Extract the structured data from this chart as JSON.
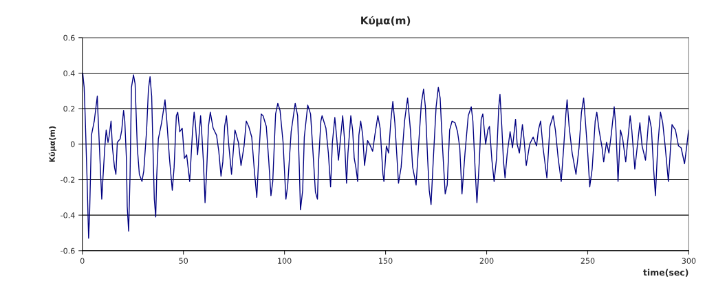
{
  "chart_data": {
    "type": "line",
    "title": "Κύμα(m)",
    "xlabel": "time(sec)",
    "ylabel": "Κύμα(m)",
    "x": [
      0.2,
      0.9,
      1.4,
      2.3,
      3.1,
      3.6,
      4.5,
      5.9,
      7.4,
      7.7,
      8.7,
      9.6,
      10.2,
      11.1,
      11.8,
      12.7,
      13.2,
      14.2,
      14.9,
      15.9,
      16.6,
      17.3,
      18.7,
      19.5,
      20.4,
      21.0,
      21.8,
      22.2,
      22.9,
      23.6,
      24.3,
      25.3,
      26.1,
      27.2,
      28.2,
      29.5,
      30.4,
      31.8,
      32.7,
      33.5,
      34.3,
      35.0,
      35.6,
      36.3,
      36.8,
      37.6,
      39.2,
      40.9,
      41.8,
      43.1,
      44.5,
      45.4,
      46.5,
      47.2,
      48.2,
      49.4,
      50.5,
      51.6,
      53.1,
      54.5,
      55.3,
      55.9,
      57.0,
      58.5,
      59.2,
      59.9,
      60.7,
      61.5,
      62.4,
      63.3,
      64.7,
      66.4,
      67.5,
      68.6,
      69.5,
      70.4,
      71.3,
      72.4,
      73.8,
      74.6,
      75.5,
      77.2,
      78.5,
      80.0,
      81.1,
      82.3,
      83.8,
      85.1,
      86.3,
      87.2,
      88.5,
      89.4,
      91.0,
      92.2,
      93.3,
      94.2,
      95.6,
      96.7,
      97.8,
      99.3,
      100.7,
      101.6,
      103.3,
      105.3,
      106.5,
      107.3,
      107.9,
      109.0,
      109.8,
      111.5,
      112.9,
      114.4,
      115.3,
      116.3,
      116.9,
      118.0,
      118.6,
      120.5,
      121.7,
      122.8,
      123.7,
      124.9,
      125.8,
      126.7,
      127.7,
      128.8,
      129.6,
      130.7,
      131.4,
      132.8,
      133.7,
      134.5,
      135.3,
      136.2,
      136.8,
      137.7,
      138.7,
      139.6,
      141.1,
      142.1,
      143.6,
      144.7,
      146.2,
      147.3,
      148.7,
      149.2,
      150.4,
      151.5,
      152.6,
      153.6,
      154.6,
      155.5,
      156.4,
      157.7,
      159.4,
      160.9,
      162.3,
      163.4,
      165.1,
      166.6,
      167.7,
      168.8,
      169.7,
      170.8,
      171.6,
      172.5,
      173.6,
      175.0,
      176.1,
      177.0,
      178.2,
      179.5,
      180.5,
      181.7,
      182.9,
      184.4,
      185.6,
      186.7,
      187.8,
      189.3,
      190.9,
      192.4,
      193.2,
      194.3,
      195.2,
      196.4,
      197.3,
      198.1,
      199.5,
      200.6,
      201.4,
      202.6,
      203.7,
      204.9,
      206.0,
      206.6,
      207.5,
      208.3,
      209.1,
      210.2,
      211.6,
      212.8,
      214.3,
      215.1,
      216.2,
      217.7,
      218.4,
      219.6,
      221.3,
      223.0,
      224.7,
      225.6,
      226.7,
      227.9,
      229.8,
      231.3,
      232.9,
      234.0,
      235.4,
      236.9,
      238.1,
      239.2,
      239.8,
      240.8,
      242.3,
      244.2,
      245.7,
      246.9,
      248.0,
      249.1,
      250.0,
      251.0,
      252.2,
      253.7,
      254.5,
      255.6,
      257.1,
      257.9,
      259.3,
      260.5,
      261.6,
      263.1,
      263.9,
      265.0,
      266.2,
      267.3,
      268.8,
      271.0,
      271.8,
      273.3,
      275.8,
      276.9,
      278.6,
      280.3,
      281.5,
      282.6,
      283.5,
      284.6,
      286.0,
      287.1,
      288.3,
      289.9,
      291.7,
      293.4,
      294.9,
      296.2,
      297.9,
      299.1,
      299.9
    ],
    "series": [
      {
        "color": "#000080",
        "values": [
          0.4,
          0.32,
          0.16,
          -0.18,
          -0.53,
          -0.39,
          0.05,
          0.13,
          0.27,
          0.18,
          -0.08,
          -0.31,
          -0.19,
          -0.02,
          0.08,
          0.01,
          0.04,
          0.13,
          -0.02,
          -0.13,
          -0.17,
          0.01,
          0.03,
          0.08,
          0.19,
          0.13,
          -0.08,
          -0.35,
          -0.49,
          -0.18,
          0.32,
          0.39,
          0.34,
          -0.02,
          -0.17,
          -0.21,
          -0.15,
          0.08,
          0.31,
          0.38,
          0.27,
          -0.05,
          -0.31,
          -0.41,
          -0.18,
          0.03,
          0.12,
          0.25,
          0.13,
          -0.08,
          -0.26,
          -0.13,
          0.16,
          0.18,
          0.07,
          0.09,
          -0.08,
          -0.06,
          -0.21,
          0.07,
          0.18,
          0.12,
          -0.06,
          0.16,
          0.04,
          -0.1,
          -0.33,
          -0.15,
          0.1,
          0.18,
          0.09,
          0.05,
          -0.04,
          -0.18,
          -0.1,
          0.1,
          0.16,
          0.0,
          -0.17,
          -0.05,
          0.08,
          0.01,
          -0.12,
          -0.01,
          0.13,
          0.1,
          0.04,
          -0.15,
          -0.3,
          -0.09,
          0.17,
          0.16,
          0.1,
          -0.09,
          -0.29,
          -0.21,
          0.17,
          0.23,
          0.19,
          0.01,
          -0.31,
          -0.23,
          0.07,
          0.23,
          0.16,
          -0.12,
          -0.37,
          -0.26,
          0.04,
          0.22,
          0.17,
          -0.1,
          -0.27,
          -0.31,
          -0.09,
          0.13,
          0.16,
          0.09,
          -0.05,
          -0.24,
          0.01,
          0.15,
          0.04,
          -0.09,
          0.03,
          0.16,
          0.04,
          -0.22,
          -0.05,
          0.16,
          0.08,
          -0.08,
          -0.13,
          -0.21,
          0.05,
          0.13,
          0.05,
          -0.12,
          0.02,
          0.0,
          -0.04,
          0.05,
          0.16,
          0.09,
          -0.17,
          -0.21,
          -0.01,
          -0.05,
          0.13,
          0.24,
          0.12,
          -0.05,
          -0.22,
          -0.13,
          0.13,
          0.26,
          0.08,
          -0.13,
          -0.23,
          0.04,
          0.23,
          0.31,
          0.21,
          -0.08,
          -0.26,
          -0.34,
          -0.09,
          0.21,
          0.32,
          0.26,
          -0.02,
          -0.28,
          -0.23,
          0.08,
          0.13,
          0.12,
          0.07,
          -0.02,
          -0.28,
          -0.05,
          0.16,
          0.21,
          0.13,
          -0.14,
          -0.33,
          -0.09,
          0.14,
          0.17,
          0.0,
          0.08,
          0.1,
          -0.09,
          -0.21,
          -0.08,
          0.21,
          0.28,
          0.1,
          -0.09,
          -0.19,
          -0.05,
          0.07,
          -0.02,
          0.14,
          0.0,
          -0.05,
          0.11,
          0.04,
          -0.12,
          0.0,
          0.04,
          -0.01,
          0.08,
          0.13,
          -0.02,
          -0.19,
          0.1,
          0.16,
          0.08,
          -0.08,
          -0.21,
          -0.02,
          0.17,
          0.25,
          0.1,
          -0.05,
          -0.17,
          -0.02,
          0.18,
          0.26,
          0.09,
          -0.05,
          -0.24,
          -0.14,
          0.13,
          0.18,
          0.08,
          -0.02,
          -0.1,
          0.01,
          -0.05,
          0.05,
          0.21,
          0.1,
          -0.21,
          0.08,
          0.03,
          -0.1,
          0.16,
          0.08,
          -0.14,
          0.12,
          -0.01,
          -0.09,
          0.16,
          0.09,
          -0.14,
          -0.29,
          -0.02,
          0.18,
          0.12,
          -0.01,
          -0.21,
          0.11,
          0.08,
          -0.01,
          -0.02,
          -0.11,
          0.0,
          0.08
        ]
      }
    ],
    "xlim": [
      0,
      300
    ],
    "xticks": [
      0,
      50,
      100,
      150,
      200,
      250,
      300
    ],
    "ylim": [
      -0.6,
      0.6
    ],
    "yticks": [
      {
        "value": -0.6,
        "label": "-0.6"
      },
      {
        "value": -0.4,
        "label": "-0.4"
      },
      {
        "value": -0.2,
        "label": "-0.2"
      },
      0,
      0.2,
      0.4,
      0.6
    ],
    "grid": "y",
    "legend": false,
    "marker": "none",
    "line_style": "solid"
  }
}
